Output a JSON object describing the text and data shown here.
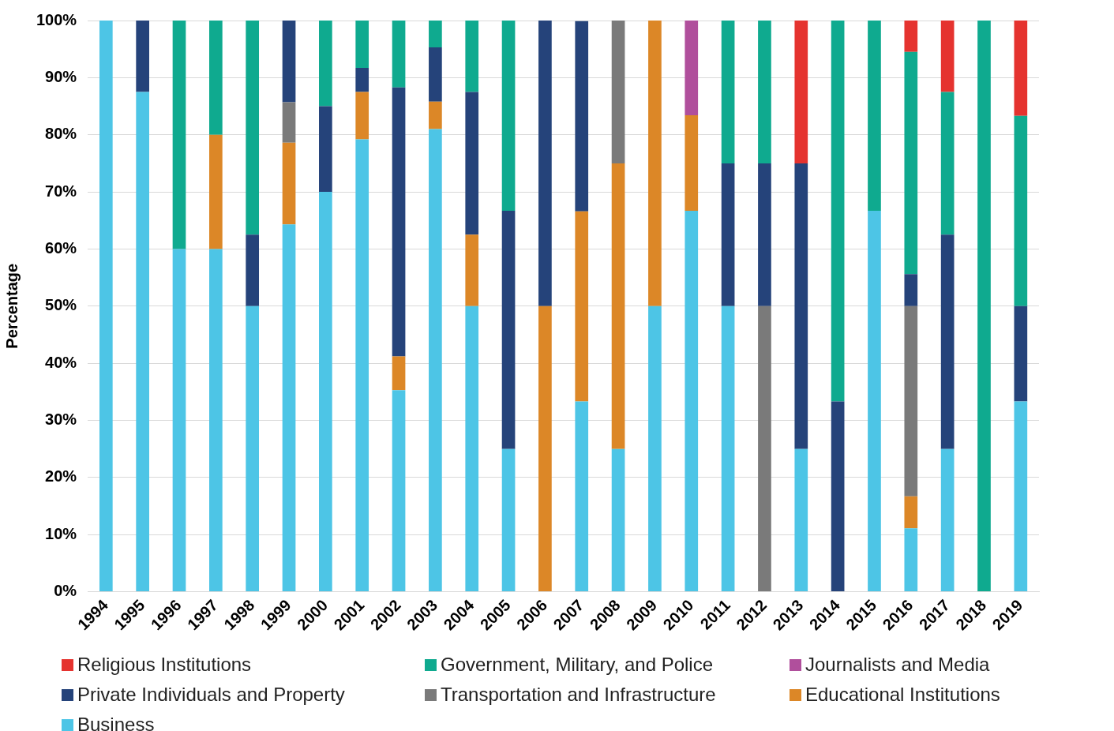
{
  "chart_data": {
    "type": "bar",
    "stacked": true,
    "ylabel": "Percentage",
    "legend": "bottom",
    "grid": "y",
    "categories": [
      "1994",
      "1995",
      "1996",
      "1997",
      "1998",
      "1999",
      "2000",
      "2001",
      "2002",
      "2003",
      "2004",
      "2005",
      "2006",
      "2007",
      "2008",
      "2009",
      "2010",
      "2011",
      "2012",
      "2013",
      "2014",
      "2015",
      "2016",
      "2017",
      "2018",
      "2019"
    ],
    "ylim": [
      0,
      100
    ],
    "yticks": [
      {
        "value": 0,
        "label": "0%"
      },
      {
        "value": 10,
        "label": "10%"
      },
      {
        "value": 20,
        "label": "20%"
      },
      {
        "value": 30,
        "label": "30%"
      },
      {
        "value": 40,
        "label": "40%"
      },
      {
        "value": 50,
        "label": "50%"
      },
      {
        "value": 60,
        "label": "60%"
      },
      {
        "value": 70,
        "label": "70%"
      },
      {
        "value": 80,
        "label": "80%"
      },
      {
        "value": 90,
        "label": "90%"
      },
      {
        "value": 100,
        "label": "100%"
      }
    ],
    "series": [
      {
        "name": "Business",
        "color": "#4dc5e6",
        "values": [
          100,
          87.5,
          60,
          60,
          50,
          64.3,
          70,
          79.2,
          35.3,
          81,
          50,
          25,
          0,
          33.3,
          25,
          50,
          66.7,
          50,
          0,
          25,
          0,
          66.7,
          11.1,
          25,
          0,
          33.3
        ]
      },
      {
        "name": "Educational Institutions",
        "color": "#dc8727",
        "values": [
          0,
          0,
          0,
          20,
          0,
          14.3,
          0,
          8.3,
          5.9,
          4.8,
          12.5,
          0,
          50,
          33.3,
          50,
          50,
          16.7,
          0,
          0,
          0,
          0,
          0,
          5.6,
          0,
          0,
          0
        ]
      },
      {
        "name": "Transportation and Infrastructure",
        "color": "#7a7a7a",
        "values": [
          0,
          0,
          0,
          0,
          0,
          7.1,
          0,
          0,
          0,
          0,
          0,
          0,
          0,
          0,
          25,
          0,
          0,
          0,
          50,
          0,
          0,
          0,
          33.3,
          0,
          0,
          0
        ]
      },
      {
        "name": "Private Individuals and Property",
        "color": "#25437a",
        "values": [
          0,
          12.5,
          0,
          0,
          12.5,
          14.3,
          15,
          4.2,
          47.1,
          9.5,
          25,
          41.7,
          50,
          33.3,
          0,
          0,
          0,
          25,
          25,
          50,
          33.3,
          0,
          5.6,
          37.5,
          0,
          16.7
        ]
      },
      {
        "name": "Journalists and Media",
        "color": "#b04f9c",
        "values": [
          0,
          0,
          0,
          0,
          0,
          0,
          0,
          0,
          0,
          0,
          0,
          0,
          0,
          0,
          0,
          0,
          16.7,
          0,
          0,
          0,
          0,
          0,
          0,
          0,
          0,
          0
        ]
      },
      {
        "name": "Government, Military, and Police",
        "color": "#0faa8f",
        "values": [
          0,
          0,
          40,
          20,
          37.5,
          0,
          15,
          8.3,
          11.8,
          4.8,
          12.5,
          33.3,
          0,
          0,
          0,
          0,
          0,
          25,
          25,
          0,
          66.7,
          33.3,
          38.9,
          25,
          100,
          33.3
        ]
      },
      {
        "name": "Religious Institutions",
        "color": "#e5332f",
        "values": [
          0,
          0,
          0,
          0,
          0,
          0,
          0,
          0,
          0,
          0,
          0,
          0,
          0,
          0,
          0,
          0,
          0,
          0,
          0,
          25,
          0,
          0,
          5.6,
          12.5,
          0,
          16.7
        ]
      }
    ]
  }
}
